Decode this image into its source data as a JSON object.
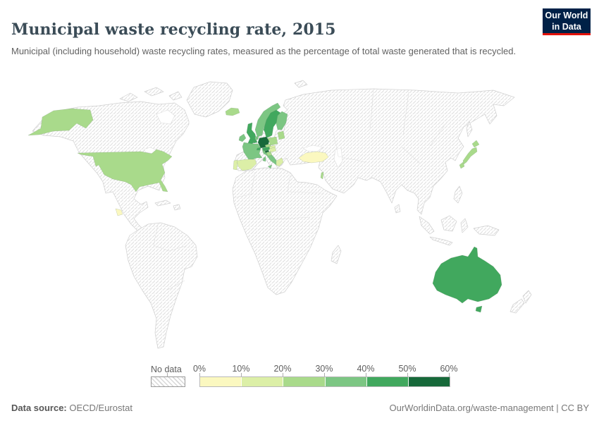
{
  "header": {
    "title": "Municipal waste recycling rate, 2015",
    "subtitle": "Municipal (including household) waste recycling rates, measured as the percentage of total waste generated that is recycled.",
    "logo_line1": "Our World",
    "logo_line2": "in Data",
    "logo_bg": "#002147",
    "logo_accent": "#e3120b"
  },
  "legend": {
    "no_data_label": "No data",
    "ticks": [
      "0%",
      "10%",
      "20%",
      "30%",
      "40%",
      "50%",
      "60%"
    ],
    "bins": [
      {
        "range": "0-10%",
        "color": "#fbf8c0"
      },
      {
        "range": "10-20%",
        "color": "#dcefa7"
      },
      {
        "range": "20-30%",
        "color": "#a9da8b"
      },
      {
        "range": "30-40%",
        "color": "#7cc683"
      },
      {
        "range": "40-50%",
        "color": "#41a85e"
      },
      {
        "range": "50-60%",
        "color": "#17693a"
      }
    ]
  },
  "footer": {
    "source_label": "Data source:",
    "source_value": " OECD/Eurostat",
    "link": "OurWorldinData.org/waste-management | CC BY"
  },
  "map": {
    "no_data_fill": "hatched",
    "border_color": "#cfcfcf",
    "countries": {
      "usa": 2,
      "costa-rica": 0,
      "iceland": 2,
      "uk": 4,
      "ireland": 3,
      "norway": 3,
      "sweden": 4,
      "finland": 3,
      "denmark": 4,
      "germany": 5,
      "netherlands": 3,
      "belgium": 4,
      "france": 3,
      "spain": 1,
      "portugal": 1,
      "italy": 3,
      "switzerland": 4,
      "austria": 4,
      "czechia": 2,
      "poland": 2,
      "slovakia": 1,
      "hungary": 1,
      "slovenia": 5,
      "croatia": 2,
      "baltics": 2,
      "greece": 1,
      "turkey": 0,
      "israel": 2,
      "japan": 2,
      "australia": 4
    }
  },
  "chart_data": {
    "type": "choropleth",
    "title": "Municipal waste recycling rate, 2015",
    "unit": "%",
    "bin_edges": [
      0,
      10,
      20,
      30,
      40,
      50,
      60
    ],
    "legend_position": "bottom",
    "no_data_style": "diagonal-hatch",
    "countries": [
      {
        "name": "United States",
        "bin": "20-30%"
      },
      {
        "name": "Costa Rica",
        "bin": "0-10%"
      },
      {
        "name": "Iceland",
        "bin": "20-30%"
      },
      {
        "name": "United Kingdom",
        "bin": "40-50%"
      },
      {
        "name": "Ireland",
        "bin": "30-40%"
      },
      {
        "name": "Norway",
        "bin": "30-40%"
      },
      {
        "name": "Sweden",
        "bin": "40-50%"
      },
      {
        "name": "Finland",
        "bin": "30-40%"
      },
      {
        "name": "Denmark",
        "bin": "40-50%"
      },
      {
        "name": "Germany",
        "bin": "50-60%"
      },
      {
        "name": "Netherlands",
        "bin": "30-40%"
      },
      {
        "name": "Belgium",
        "bin": "40-50%"
      },
      {
        "name": "France",
        "bin": "30-40%"
      },
      {
        "name": "Spain",
        "bin": "10-20%"
      },
      {
        "name": "Portugal",
        "bin": "10-20%"
      },
      {
        "name": "Italy",
        "bin": "30-40%"
      },
      {
        "name": "Switzerland",
        "bin": "40-50%"
      },
      {
        "name": "Austria",
        "bin": "40-50%"
      },
      {
        "name": "Czechia",
        "bin": "20-30%"
      },
      {
        "name": "Poland",
        "bin": "20-30%"
      },
      {
        "name": "Slovakia",
        "bin": "10-20%"
      },
      {
        "name": "Hungary",
        "bin": "10-20%"
      },
      {
        "name": "Slovenia",
        "bin": "50-60%"
      },
      {
        "name": "Croatia",
        "bin": "20-30%"
      },
      {
        "name": "Baltic states",
        "bin": "20-30%"
      },
      {
        "name": "Greece",
        "bin": "10-20%"
      },
      {
        "name": "Turkey",
        "bin": "0-10%"
      },
      {
        "name": "Israel",
        "bin": "20-30%"
      },
      {
        "name": "Japan",
        "bin": "20-30%"
      },
      {
        "name": "Australia",
        "bin": "40-50%"
      }
    ],
    "no_data_regions": "All other countries shown hatched (no data)"
  }
}
